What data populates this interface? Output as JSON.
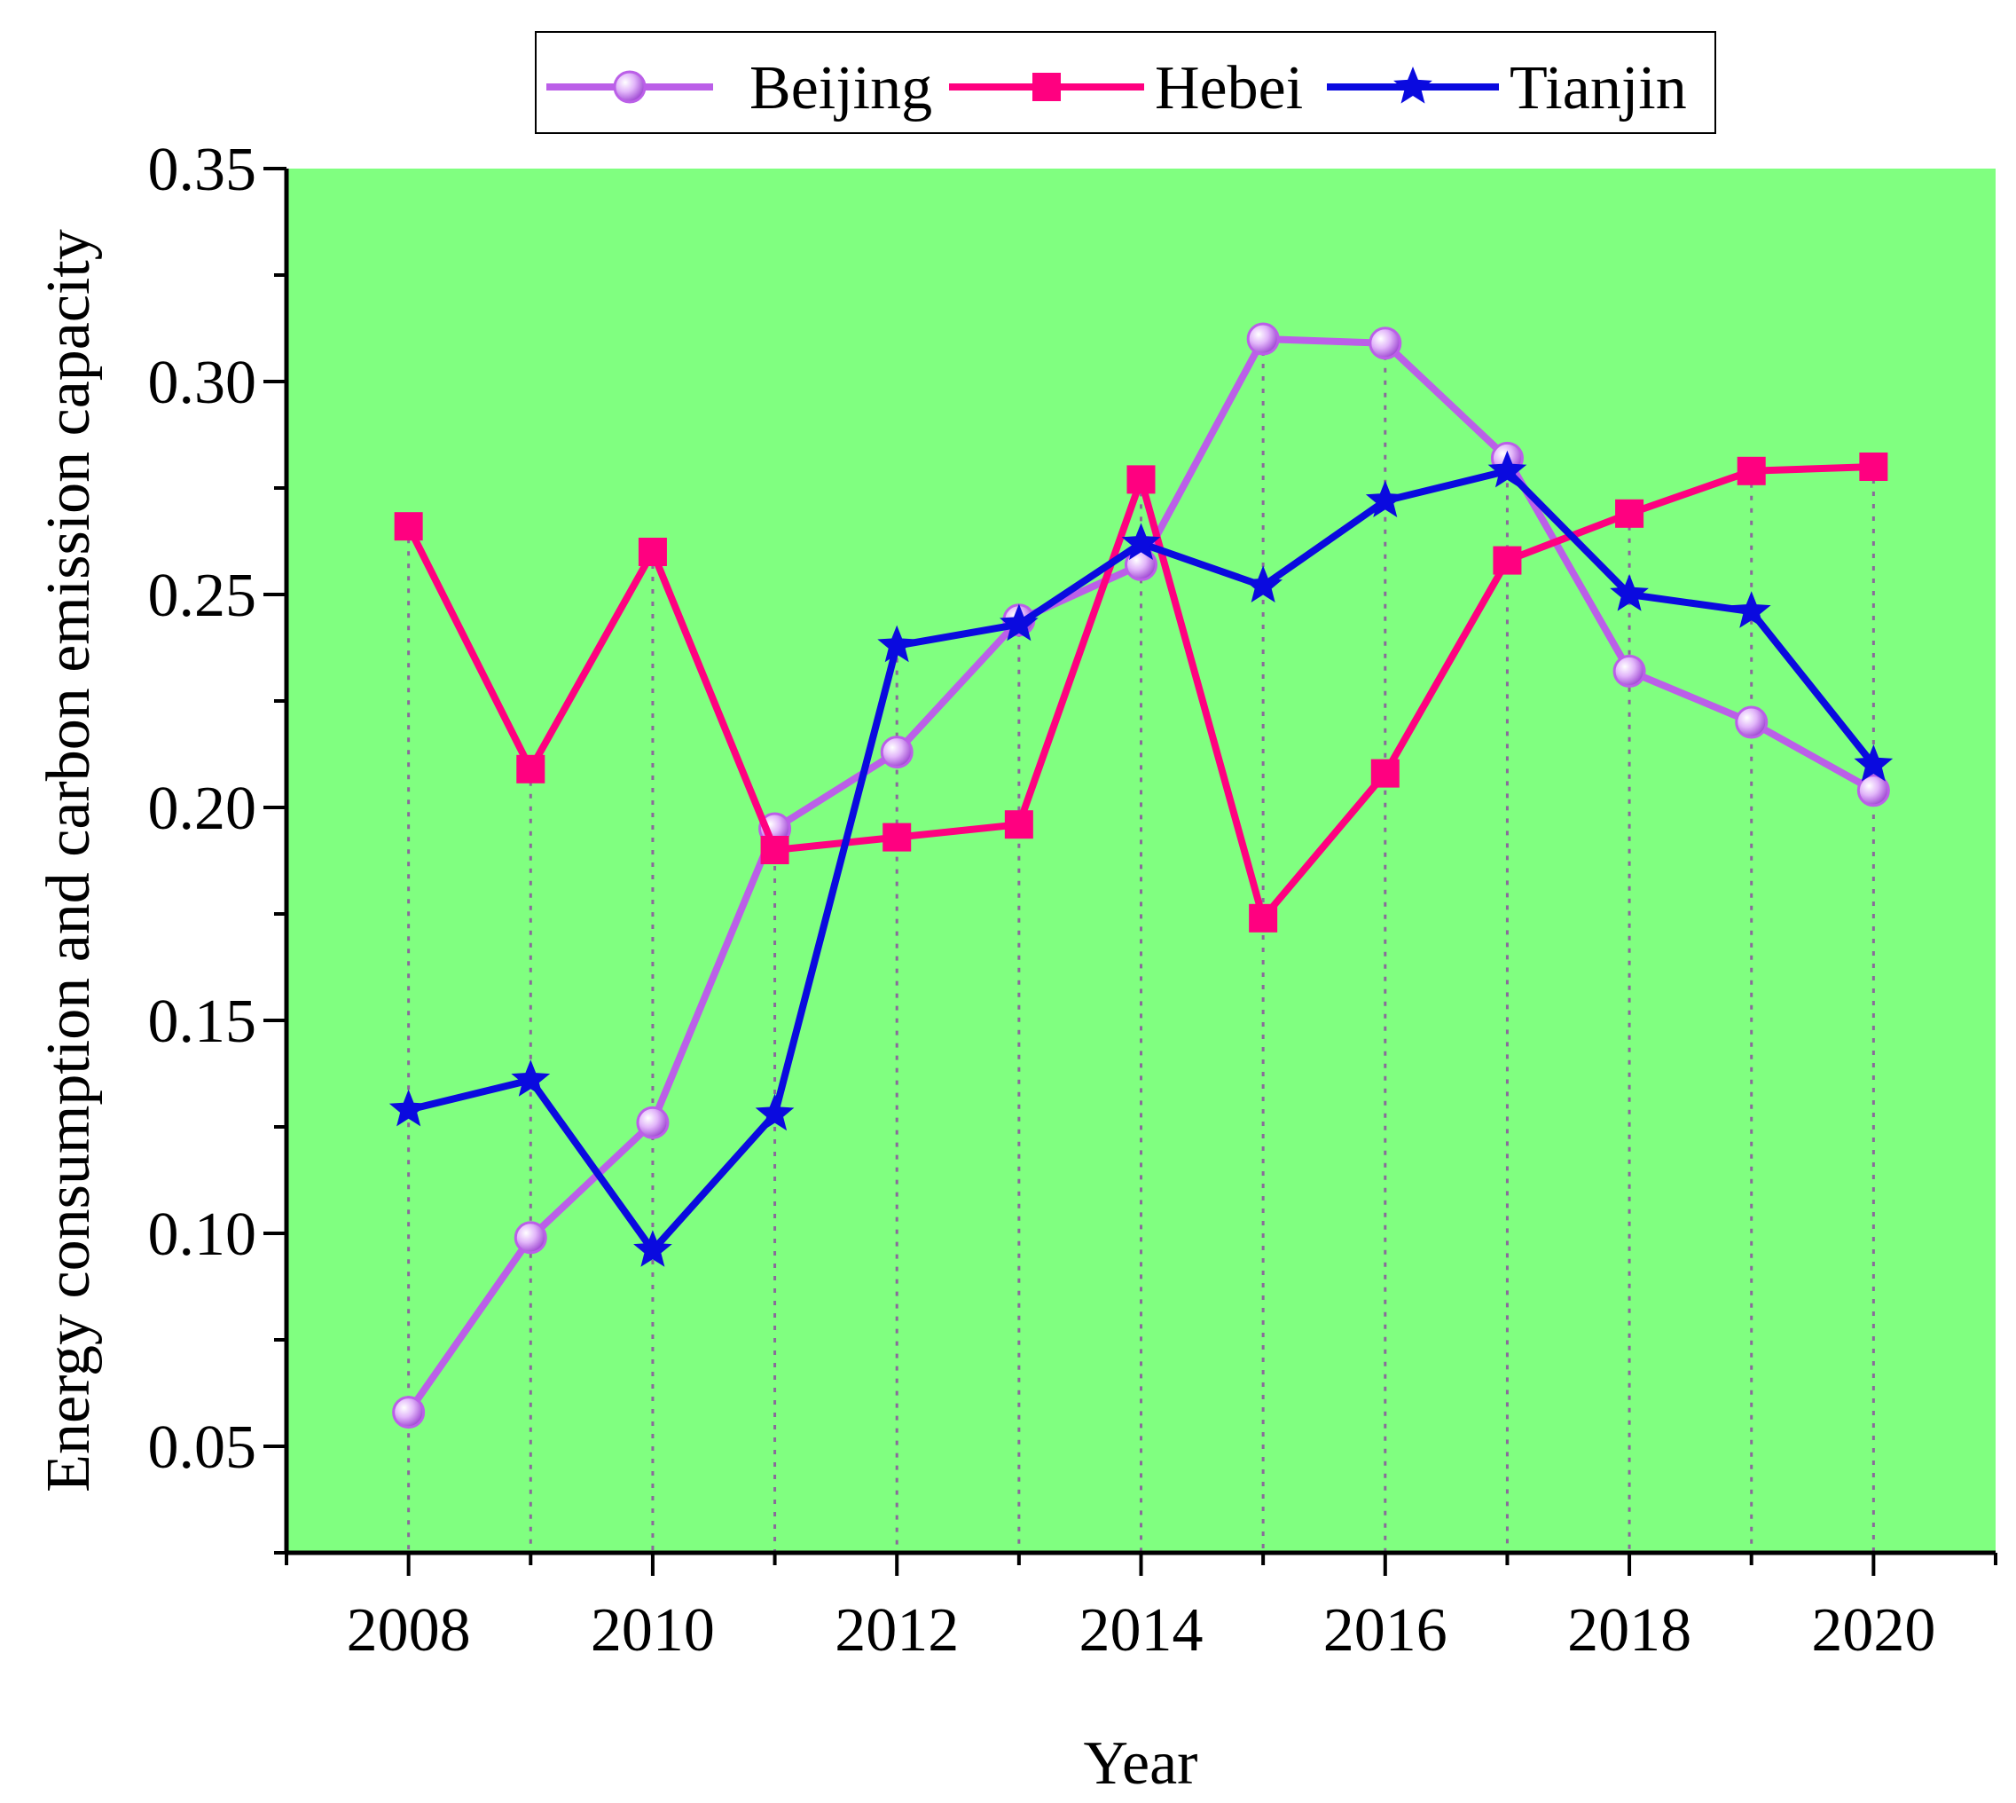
{
  "chart_data": {
    "type": "line",
    "title": "",
    "xlabel": "Year",
    "ylabel": "Energy consumption and carbon emission capacity",
    "xlim": [
      2007,
      2021
    ],
    "ylim": [
      0.025,
      0.35
    ],
    "x_ticks": [
      2008,
      2010,
      2012,
      2014,
      2016,
      2018,
      2020
    ],
    "x_tick_labels": [
      "2008",
      "2010",
      "2012",
      "2014",
      "2016",
      "2018",
      "2020"
    ],
    "y_ticks": [
      0.05,
      0.1,
      0.15,
      0.2,
      0.25,
      0.3,
      0.35
    ],
    "y_tick_labels": [
      "0.05",
      "0.10",
      "0.15",
      "0.20",
      "0.25",
      "0.30",
      "0.35"
    ],
    "grid": "vertical dotted drop lines at each year",
    "legend_position": "top",
    "plot_background": "#80ff80",
    "x": [
      2008,
      2009,
      2010,
      2011,
      2012,
      2013,
      2014,
      2015,
      2016,
      2017,
      2018,
      2019,
      2020
    ],
    "series": [
      {
        "name": "Beijing",
        "color": "#bb5fe8",
        "marker": "circle",
        "values": [
          0.058,
          0.099,
          0.126,
          0.195,
          0.213,
          0.244,
          0.257,
          0.31,
          0.309,
          0.282,
          0.232,
          0.22,
          0.204
        ]
      },
      {
        "name": "Hebei",
        "color": "#ff0080",
        "marker": "square",
        "values": [
          0.266,
          0.209,
          0.26,
          0.19,
          0.193,
          0.196,
          0.277,
          0.174,
          0.208,
          0.258,
          0.269,
          0.279,
          0.28
        ]
      },
      {
        "name": "Tianjin",
        "color": "#0a0adf",
        "marker": "star",
        "values": [
          0.129,
          0.136,
          0.096,
          0.128,
          0.238,
          0.243,
          0.262,
          0.252,
          0.272,
          0.279,
          0.25,
          0.246,
          0.21
        ]
      }
    ]
  }
}
